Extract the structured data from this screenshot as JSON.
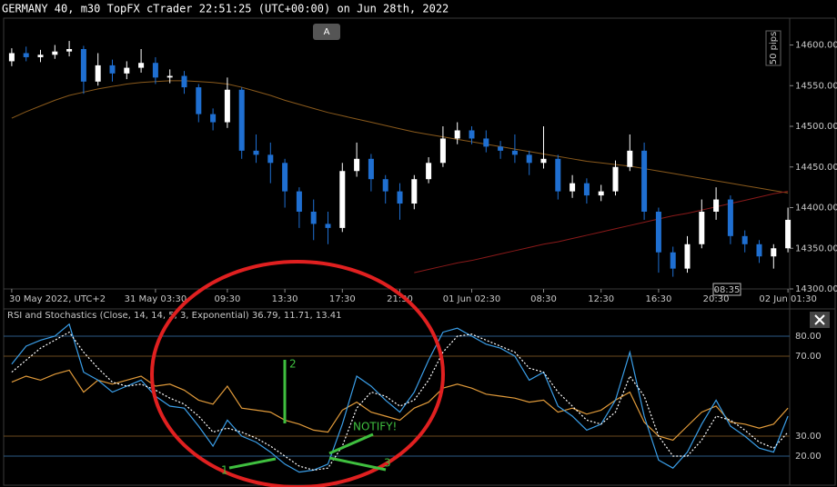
{
  "header": {
    "title": "GERMANY 40, m30 TopFX cTrader 22:51:25 (UTC+00:00) on Jun 28th, 2022"
  },
  "toolbar": {
    "button": "A",
    "scale": "50 pips",
    "time_marker": "08:35"
  },
  "annotations": {
    "one": "1",
    "two": "2",
    "three": "3",
    "notify": "NOTIFY!"
  },
  "chart_data": [
    {
      "type": "candlestick",
      "categories": [
        "30 May 2022, UTC+2",
        null,
        null,
        null,
        null,
        null,
        null,
        null,
        null,
        null,
        "31 May 03:30",
        null,
        null,
        null,
        null,
        "09:30",
        null,
        null,
        null,
        "13:30",
        null,
        null,
        null,
        "17:30",
        null,
        null,
        null,
        "21:30",
        null,
        null,
        null,
        null,
        "01 Jun 02:30",
        null,
        null,
        null,
        null,
        "08:30",
        null,
        null,
        null,
        "12:30",
        null,
        null,
        null,
        "16:30",
        null,
        null,
        null,
        "20:30",
        null,
        null,
        null,
        null,
        "02 Jun 01:30"
      ],
      "open": [
        14580,
        14590,
        14585,
        14588,
        14592,
        14595,
        14555,
        14575,
        14565,
        14572,
        14578,
        14560,
        14562,
        14548,
        14515,
        14505,
        14545,
        14470,
        14465,
        14455,
        14420,
        14395,
        14380,
        14375,
        14445,
        14460,
        14435,
        14420,
        14405,
        14435,
        14455,
        14485,
        14495,
        14485,
        14475,
        14470,
        14465,
        14455,
        14460,
        14420,
        14430,
        14415,
        14420,
        14450,
        14470,
        14395,
        14345,
        14325,
        14355,
        14395,
        14410,
        14365,
        14355,
        14340,
        14350
      ],
      "high": [
        14596,
        14598,
        14594,
        14600,
        14605,
        14599,
        14590,
        14582,
        14580,
        14595,
        14585,
        14570,
        14568,
        14552,
        14522,
        14560,
        14548,
        14490,
        14480,
        14460,
        14425,
        14410,
        14395,
        14455,
        14480,
        14466,
        14440,
        14430,
        14440,
        14462,
        14500,
        14505,
        14500,
        14495,
        14482,
        14490,
        14470,
        14500,
        14465,
        14440,
        14436,
        14428,
        14458,
        14490,
        14480,
        14400,
        14352,
        14365,
        14410,
        14425,
        14415,
        14372,
        14360,
        14355,
        14400
      ],
      "low": [
        14574,
        14580,
        14579,
        14583,
        14586,
        14540,
        14550,
        14555,
        14558,
        14566,
        14552,
        14553,
        14540,
        14505,
        14495,
        14498,
        14460,
        14455,
        14430,
        14400,
        14375,
        14360,
        14355,
        14370,
        14438,
        14420,
        14405,
        14385,
        14398,
        14430,
        14450,
        14478,
        14478,
        14468,
        14460,
        14455,
        14440,
        14448,
        14410,
        14412,
        14405,
        14408,
        14415,
        14445,
        14385,
        14320,
        14315,
        14320,
        14350,
        14385,
        14355,
        14345,
        14332,
        14325,
        14345
      ],
      "close": [
        14590,
        14585,
        14588,
        14592,
        14595,
        14555,
        14575,
        14565,
        14572,
        14578,
        14560,
        14562,
        14548,
        14515,
        14505,
        14545,
        14470,
        14465,
        14455,
        14420,
        14395,
        14380,
        14375,
        14445,
        14460,
        14435,
        14420,
        14405,
        14435,
        14455,
        14485,
        14495,
        14485,
        14475,
        14470,
        14465,
        14455,
        14460,
        14420,
        14430,
        14415,
        14420,
        14450,
        14470,
        14395,
        14345,
        14325,
        14355,
        14395,
        14410,
        14365,
        14355,
        14340,
        14350,
        14385
      ],
      "up_color": "#ffffff",
      "down_color": "#1f6fd1",
      "overlays": [
        {
          "color": "#8a5a1c",
          "values": [
            14510,
            14518,
            14525,
            14532,
            14538,
            14542,
            14546,
            14549,
            14552,
            14554,
            14555,
            14556,
            14556,
            14555,
            14554,
            14552,
            14548,
            14543,
            14538,
            14532,
            14527,
            14522,
            14517,
            14513,
            14509,
            14505,
            14501,
            14497,
            14493,
            14490,
            14487,
            14484,
            14481,
            14478,
            14475,
            14472,
            14469,
            14466,
            14463,
            14460,
            14457,
            14455,
            14453,
            14451,
            14448,
            14445,
            14442,
            14439,
            14436,
            14433,
            14430,
            14427,
            14424,
            14421,
            14418
          ]
        },
        {
          "color": "#8b1a1a",
          "values": [
            null,
            null,
            null,
            null,
            null,
            null,
            null,
            null,
            null,
            null,
            null,
            null,
            null,
            null,
            null,
            null,
            null,
            null,
            null,
            null,
            null,
            null,
            null,
            null,
            null,
            null,
            null,
            null,
            14320,
            14324,
            14328,
            14332,
            14335,
            14339,
            14343,
            14347,
            14351,
            14355,
            14358,
            14362,
            14366,
            14370,
            14374,
            14378,
            14382,
            14386,
            14390,
            14393,
            14397,
            14401,
            14405,
            14409,
            14413,
            14417,
            14420
          ]
        }
      ],
      "ylim": [
        14300,
        14633
      ],
      "yticks": [
        {
          "value": 14300,
          "label": "14300.00"
        },
        {
          "value": 14350,
          "label": "14350.00"
        },
        {
          "value": 14400,
          "label": "14400.00"
        },
        {
          "value": 14450,
          "label": "14450.00"
        },
        {
          "value": 14500,
          "label": "14500.00"
        },
        {
          "value": 14550,
          "label": "14550.00"
        },
        {
          "value": 14600,
          "label": "14600.00"
        }
      ]
    },
    {
      "type": "line",
      "title": "RSI and Stochastics (Close, 14, 14, 5, 3, Exponential) 36.79, 11.71, 13.41",
      "series": [
        {
          "color": "#e09a3a",
          "values": [
            57,
            60,
            58,
            61,
            63,
            52,
            58,
            56,
            58,
            60,
            55,
            56,
            53,
            48,
            46,
            55,
            44,
            43,
            42,
            38,
            36,
            33,
            32,
            43,
            47,
            42,
            40,
            38,
            44,
            47,
            54,
            56,
            54,
            51,
            50,
            49,
            47,
            48,
            42,
            44,
            41,
            43,
            48,
            52,
            37,
            30,
            28,
            35,
            42,
            45,
            37,
            36,
            34,
            36,
            44
          ]
        },
        {
          "color": "#3a9ee8",
          "values": [
            66,
            75,
            78,
            80,
            86,
            62,
            58,
            52,
            55,
            58,
            50,
            45,
            44,
            35,
            25,
            38,
            30,
            27,
            22,
            16,
            12,
            13,
            16,
            36,
            60,
            55,
            48,
            42,
            52,
            68,
            82,
            84,
            80,
            76,
            74,
            70,
            58,
            62,
            45,
            40,
            33,
            36,
            48,
            72,
            40,
            18,
            14,
            22,
            36,
            48,
            35,
            30,
            24,
            22,
            40
          ]
        },
        {
          "color": "#ffffff",
          "dashed": true,
          "values": [
            62,
            68,
            74,
            78,
            82,
            72,
            64,
            57,
            55,
            56,
            53,
            49,
            46,
            40,
            32,
            34,
            32,
            29,
            25,
            20,
            15,
            13,
            14,
            25,
            44,
            52,
            50,
            45,
            48,
            58,
            72,
            80,
            81,
            78,
            75,
            72,
            64,
            62,
            52,
            45,
            38,
            36,
            42,
            60,
            50,
            30,
            20,
            20,
            28,
            40,
            38,
            33,
            27,
            24,
            32
          ]
        }
      ],
      "ylim": [
        5,
        88
      ],
      "yticks": [
        {
          "value": 20,
          "label": "20.00"
        },
        {
          "value": 30,
          "label": "30.00"
        },
        {
          "value": 70,
          "label": "70.00"
        },
        {
          "value": 80,
          "label": "80.00"
        }
      ],
      "grid_colors": [
        "#2b5a86",
        "#6b4a1e",
        "#6b4a1e",
        "#2b5a86"
      ]
    }
  ]
}
